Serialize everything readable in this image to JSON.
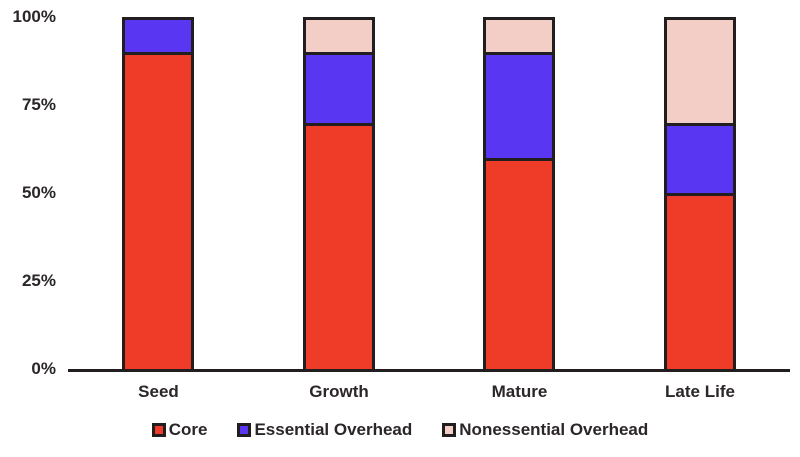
{
  "chart_data": {
    "type": "bar",
    "stacked": true,
    "percent": true,
    "title": "",
    "xlabel": "",
    "ylabel": "",
    "categories": [
      "Seed",
      "Growth",
      "Mature",
      "Late Life"
    ],
    "series": [
      {
        "name": "Core",
        "color": "#ee3c28",
        "values": [
          90,
          70,
          60,
          50
        ]
      },
      {
        "name": "Essential Overhead",
        "color": "#5936f2",
        "values": [
          10,
          20,
          30,
          20
        ]
      },
      {
        "name": "Nonessential Overhead",
        "color": "#f2cec6",
        "values": [
          0,
          10,
          10,
          30
        ]
      }
    ],
    "ylim": [
      0,
      100
    ],
    "ytick_values": [
      100,
      75,
      50,
      25,
      0
    ],
    "ytick_labels": [
      "100%",
      "75%",
      "50%",
      "25%",
      "0%"
    ],
    "grid": false,
    "legend_position": "bottom",
    "axis_color": "#221d1e",
    "text_color": "#2b2627"
  }
}
